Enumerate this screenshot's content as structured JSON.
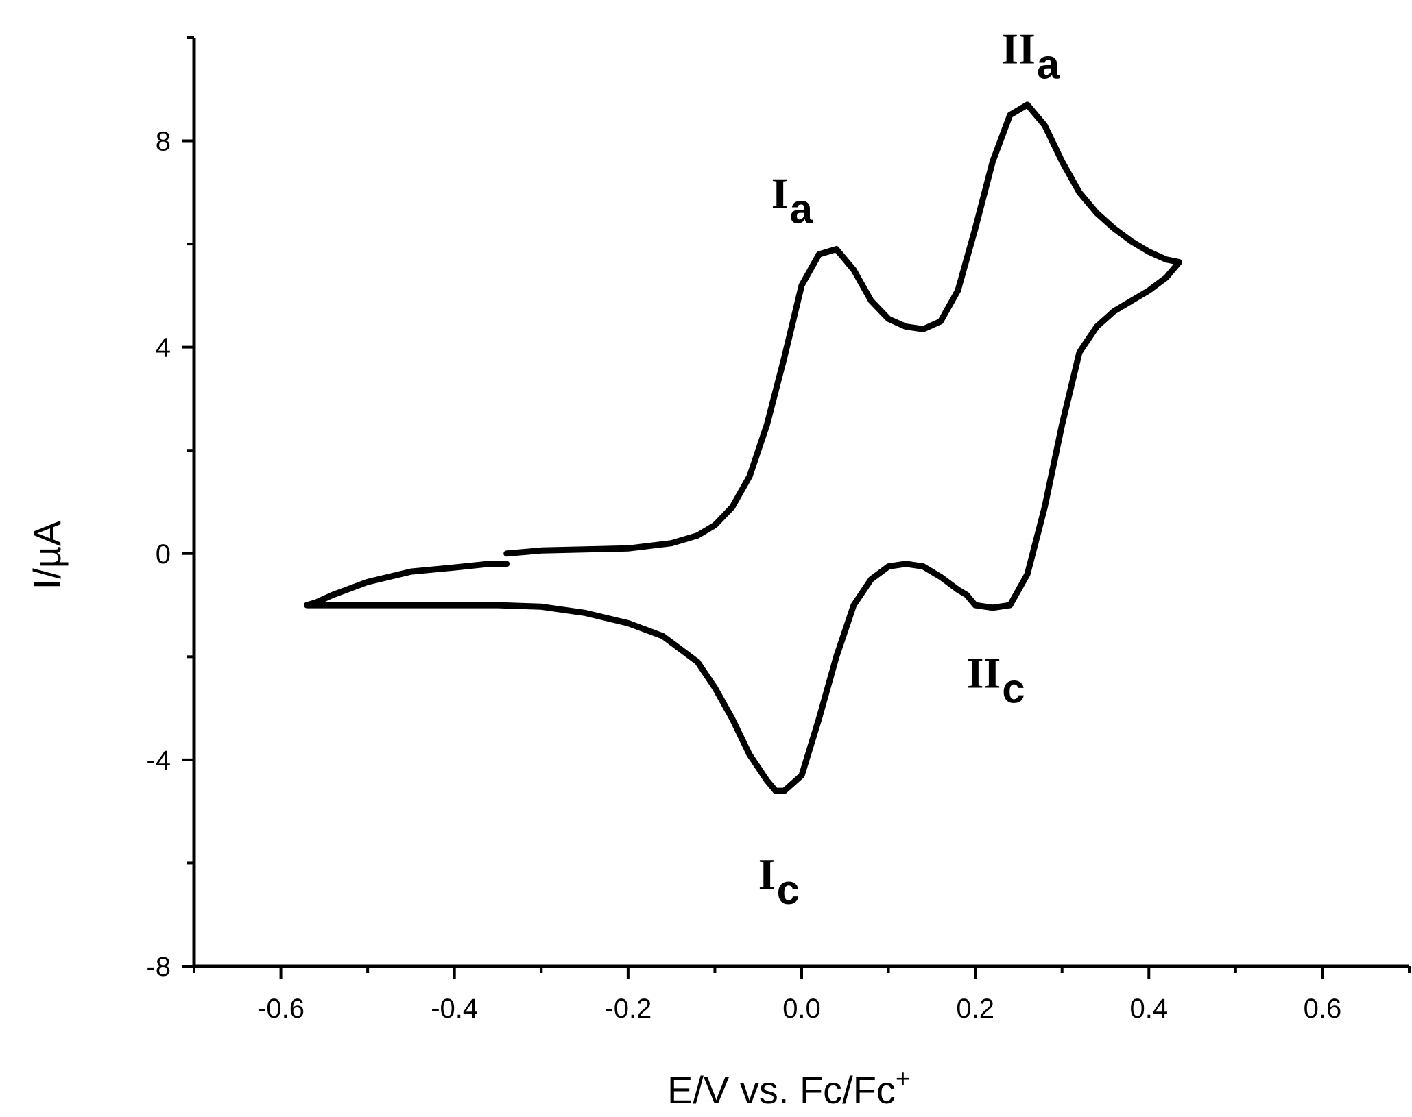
{
  "chart_data": {
    "type": "line",
    "xlabel": "E/V vs. Fc/Fc",
    "xlabel_superscript": "+",
    "ylabel": "I/µA",
    "xlim": [
      -0.7,
      0.7
    ],
    "ylim": [
      -8,
      10
    ],
    "x_ticks": [
      "-0.6",
      "-0.4",
      "-0.2",
      "0.0",
      "0.2",
      "0.4",
      "0.6"
    ],
    "x_tick_values": [
      -0.6,
      -0.4,
      -0.2,
      0.0,
      0.2,
      0.4,
      0.6
    ],
    "y_ticks": [
      "-8",
      "-4",
      "0",
      "4",
      "8"
    ],
    "y_tick_values": [
      -8,
      -4,
      0,
      4,
      8
    ],
    "grid": false,
    "line_color": "#000000",
    "annotations": [
      {
        "id": "Ia",
        "main": "I",
        "sub": "a",
        "x": -0.035,
        "y": 6.7
      },
      {
        "id": "IIa",
        "main": "II",
        "sub": "a",
        "x": 0.23,
        "y": 9.5
      },
      {
        "id": "IIc",
        "main": "II",
        "sub": "c",
        "x": 0.19,
        "y": -2.6
      },
      {
        "id": "Ic",
        "main": "I",
        "sub": "c",
        "x": -0.05,
        "y": -6.5
      }
    ],
    "series": [
      {
        "x": [
          -0.34,
          -0.3,
          -0.25,
          -0.2,
          -0.15,
          -0.12,
          -0.1,
          -0.08,
          -0.06,
          -0.04,
          -0.02,
          0.0,
          0.02,
          0.04,
          0.06,
          0.08,
          0.1,
          0.12,
          0.14,
          0.16,
          0.18,
          0.2,
          0.22,
          0.24,
          0.26,
          0.28,
          0.3,
          0.32,
          0.34,
          0.36,
          0.38,
          0.4,
          0.42,
          0.435,
          0.42,
          0.4,
          0.38,
          0.36,
          0.34,
          0.32,
          0.3,
          0.28,
          0.26,
          0.24,
          0.22,
          0.2,
          0.19,
          0.18,
          0.16,
          0.14,
          0.12,
          0.1,
          0.08,
          0.06,
          0.04,
          0.02,
          0.0,
          -0.02,
          -0.03,
          -0.04,
          -0.06,
          -0.08,
          -0.1,
          -0.12,
          -0.14,
          -0.16,
          -0.2,
          -0.25,
          -0.3,
          -0.35,
          -0.4,
          -0.45,
          -0.5,
          -0.55,
          -0.57,
          -0.56,
          -0.54,
          -0.5,
          -0.45,
          -0.4,
          -0.36,
          -0.34
        ],
        "y": [
          0.0,
          0.06,
          0.08,
          0.1,
          0.2,
          0.35,
          0.55,
          0.9,
          1.5,
          2.5,
          3.8,
          5.2,
          5.8,
          5.9,
          5.5,
          4.9,
          4.55,
          4.4,
          4.35,
          4.5,
          5.1,
          6.3,
          7.6,
          8.5,
          8.7,
          8.3,
          7.6,
          7.0,
          6.6,
          6.3,
          6.05,
          5.85,
          5.7,
          5.65,
          5.35,
          5.1,
          4.9,
          4.7,
          4.4,
          3.9,
          2.5,
          0.9,
          -0.4,
          -1.0,
          -1.05,
          -1.0,
          -0.8,
          -0.7,
          -0.45,
          -0.25,
          -0.2,
          -0.25,
          -0.5,
          -1.0,
          -2.0,
          -3.2,
          -4.3,
          -4.6,
          -4.6,
          -4.4,
          -3.9,
          -3.2,
          -2.6,
          -2.1,
          -1.85,
          -1.6,
          -1.35,
          -1.15,
          -1.03,
          -1.0,
          -1.0,
          -1.0,
          -1.0,
          -1.0,
          -1.0,
          -0.95,
          -0.8,
          -0.55,
          -0.35,
          -0.27,
          -0.2,
          -0.2
        ]
      }
    ]
  }
}
